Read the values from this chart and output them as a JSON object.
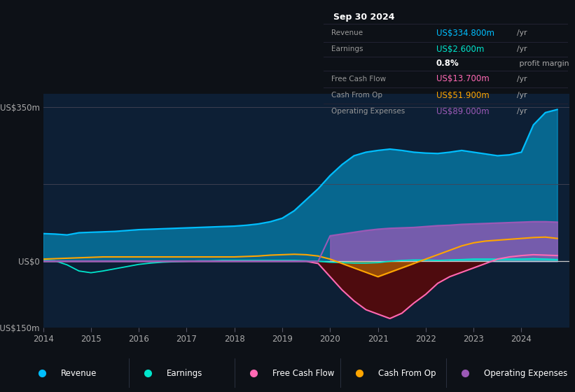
{
  "bg_color": "#0d1117",
  "plot_bg_color": "#0d1f35",
  "title_box_date": "Sep 30 2024",
  "ylim": [
    -150,
    380
  ],
  "series_colors": {
    "revenue": "#00bfff",
    "earnings": "#00e5cc",
    "free_cash_flow": "#ff69b4",
    "cash_from_op": "#ffa500",
    "operating_expenses": "#9b59b6"
  },
  "legend": [
    {
      "label": "Revenue",
      "color": "#00bfff"
    },
    {
      "label": "Earnings",
      "color": "#00e5cc"
    },
    {
      "label": "Free Cash Flow",
      "color": "#ff69b4"
    },
    {
      "label": "Cash From Op",
      "color": "#ffa500"
    },
    {
      "label": "Operating Expenses",
      "color": "#9b59b6"
    }
  ],
  "years": [
    2014.0,
    2014.25,
    2014.5,
    2014.75,
    2015.0,
    2015.25,
    2015.5,
    2015.75,
    2016.0,
    2016.25,
    2016.5,
    2016.75,
    2017.0,
    2017.25,
    2017.5,
    2017.75,
    2018.0,
    2018.25,
    2018.5,
    2018.75,
    2019.0,
    2019.25,
    2019.5,
    2019.75,
    2020.0,
    2020.25,
    2020.5,
    2020.75,
    2021.0,
    2021.25,
    2021.5,
    2021.75,
    2022.0,
    2022.25,
    2022.5,
    2022.75,
    2023.0,
    2023.25,
    2023.5,
    2023.75,
    2024.0,
    2024.25,
    2024.5,
    2024.75
  ],
  "revenue": [
    63,
    62,
    60,
    65,
    66,
    67,
    68,
    70,
    72,
    73,
    74,
    75,
    76,
    77,
    78,
    79,
    80,
    82,
    85,
    90,
    98,
    115,
    140,
    165,
    195,
    220,
    240,
    248,
    252,
    255,
    252,
    248,
    246,
    245,
    248,
    252,
    248,
    244,
    240,
    242,
    248,
    310,
    338,
    345
  ],
  "earnings": [
    2,
    1,
    -8,
    -22,
    -26,
    -22,
    -17,
    -12,
    -7,
    -4,
    -2,
    -1,
    0,
    1,
    1,
    2,
    2,
    2,
    2,
    2,
    2,
    2,
    1,
    0,
    -2,
    -3,
    -4,
    -4,
    -3,
    0,
    2,
    3,
    3,
    2,
    3,
    4,
    5,
    5,
    5,
    5,
    5,
    6,
    5,
    4
  ],
  "free_cash_flow": [
    0,
    0,
    0,
    0,
    0,
    0,
    0,
    0,
    0,
    0,
    0,
    0,
    0,
    0,
    0,
    0,
    0,
    0,
    0,
    0,
    0,
    0,
    0,
    -5,
    -35,
    -65,
    -90,
    -110,
    -120,
    -130,
    -118,
    -95,
    -75,
    -50,
    -35,
    -25,
    -15,
    -5,
    5,
    10,
    13,
    15,
    14,
    13
  ],
  "cash_from_op": [
    5,
    6,
    7,
    8,
    9,
    10,
    10,
    10,
    10,
    10,
    10,
    10,
    10,
    10,
    10,
    10,
    10,
    11,
    12,
    14,
    15,
    16,
    15,
    12,
    5,
    -5,
    -15,
    -25,
    -35,
    -25,
    -15,
    -5,
    5,
    15,
    25,
    35,
    42,
    46,
    48,
    50,
    52,
    54,
    55,
    52
  ],
  "operating_expenses": [
    0,
    0,
    0,
    0,
    0,
    0,
    0,
    0,
    0,
    0,
    0,
    0,
    0,
    0,
    0,
    0,
    0,
    0,
    0,
    0,
    0,
    0,
    0,
    0,
    58,
    62,
    66,
    70,
    73,
    75,
    76,
    77,
    79,
    81,
    82,
    84,
    85,
    86,
    87,
    88,
    89,
    90,
    90,
    89
  ],
  "info_rows": [
    {
      "label": "Revenue",
      "value": "US$334.800m",
      "value_color": "#00bfff",
      "extra": "/yr",
      "profit": false
    },
    {
      "label": "Earnings",
      "value": "US$2.600m",
      "value_color": "#00e5cc",
      "extra": "/yr",
      "profit": false
    },
    {
      "label": "",
      "value": "0.8%",
      "value_color": "#ffffff",
      "extra": " profit margin",
      "profit": true
    },
    {
      "label": "Free Cash Flow",
      "value": "US$13.700m",
      "value_color": "#ff69b4",
      "extra": "/yr",
      "profit": false
    },
    {
      "label": "Cash From Op",
      "value": "US$51.900m",
      "value_color": "#ffa500",
      "extra": "/yr",
      "profit": false
    },
    {
      "label": "Operating Expenses",
      "value": "US$89.000m",
      "value_color": "#9b59b6",
      "extra": "/yr",
      "profit": false
    }
  ]
}
